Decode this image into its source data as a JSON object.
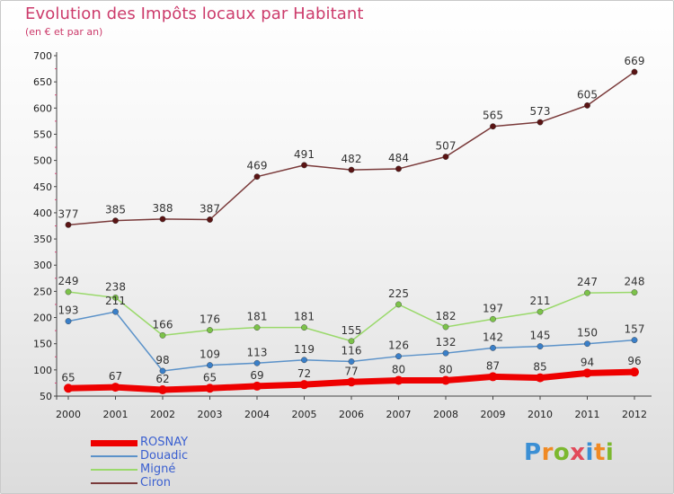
{
  "title": "Evolution des Impôts locaux par Habitant",
  "subtitle": "(en € et par an)",
  "logo": {
    "text": "Proxiti",
    "letters": [
      {
        "ch": "P",
        "color": "#3b8fd4"
      },
      {
        "ch": "r",
        "color": "#f08a24"
      },
      {
        "ch": "o",
        "color": "#7cb82f"
      },
      {
        "ch": "x",
        "color": "#e24a5a"
      },
      {
        "ch": "i",
        "color": "#3b8fd4"
      },
      {
        "ch": "t",
        "color": "#f08a24"
      },
      {
        "ch": "i",
        "color": "#7cb82f"
      }
    ]
  },
  "chart_data": {
    "type": "line",
    "title": "Evolution des Impôts locaux par Habitant",
    "subtitle": "(en € et par an)",
    "x": [
      "2000",
      "2001",
      "2002",
      "2003",
      "2004",
      "2005",
      "2006",
      "2007",
      "2008",
      "2009",
      "2010",
      "2011",
      "2012"
    ],
    "ylim": [
      50,
      700
    ],
    "yticks": [
      50,
      100,
      150,
      200,
      250,
      300,
      350,
      400,
      450,
      500,
      550,
      600,
      650,
      700
    ],
    "grid": false,
    "legend": "bottom-left",
    "series": [
      {
        "name": "ROSNAY",
        "color": "#ee0000",
        "marker": "#ee0000",
        "width": 7,
        "values": [
          65,
          67,
          62,
          65,
          69,
          72,
          77,
          80,
          80,
          87,
          85,
          94,
          96
        ]
      },
      {
        "name": "Douadic",
        "color": "#5b92c9",
        "marker": "#3a7fc8",
        "width": 1.5,
        "values": [
          193,
          211,
          98,
          109,
          113,
          119,
          116,
          126,
          132,
          142,
          145,
          150,
          157
        ]
      },
      {
        "name": "Migné",
        "color": "#9ad96b",
        "marker": "#7cc24a",
        "width": 1.5,
        "values": [
          249,
          238,
          166,
          176,
          181,
          181,
          155,
          225,
          182,
          197,
          211,
          247,
          248
        ]
      },
      {
        "name": "Ciron",
        "color": "#7a3a3a",
        "marker": "#5a1414",
        "width": 1.5,
        "values": [
          377,
          385,
          388,
          387,
          469,
          491,
          482,
          484,
          507,
          565,
          573,
          605,
          669
        ]
      }
    ]
  }
}
